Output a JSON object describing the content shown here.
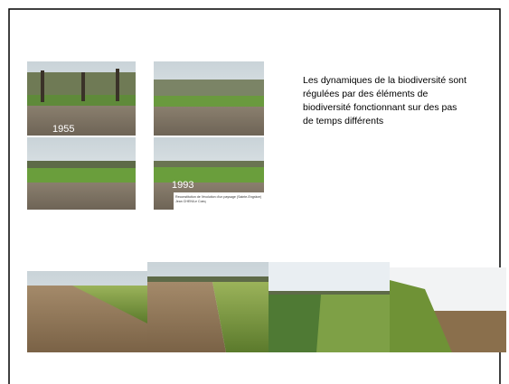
{
  "photos_top": {
    "labels": [
      "1955",
      "1993"
    ],
    "caption": [
      "Reconstitution de l'évolution d'un paysage (Sainte-Engrâce)",
      "Jean CHEN/Le Coeq"
    ]
  },
  "description": {
    "lines": [
      "Les dynamiques de la biodiversité sont",
      "régulées par des éléments de",
      "biodiversité fonctionnant sur des pas",
      "de temps différents"
    ]
  }
}
